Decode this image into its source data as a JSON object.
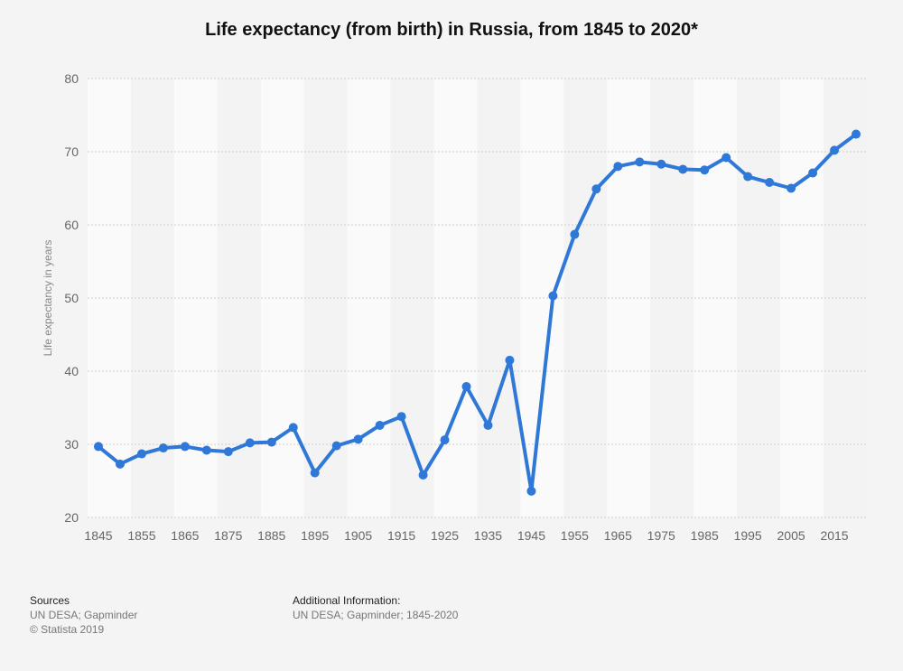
{
  "chart_data": {
    "type": "line",
    "title": "Life expectancy (from birth) in Russia, from 1845 to 2020*",
    "xlabel": "",
    "ylabel": "Life expectancy in years",
    "ylim": [
      20,
      80
    ],
    "yticks": [
      "20",
      "30",
      "40",
      "50",
      "60",
      "70",
      "80"
    ],
    "xticks": [
      "1845",
      "1855",
      "1865",
      "1875",
      "1885",
      "1895",
      "1905",
      "1915",
      "1925",
      "1935",
      "1945",
      "1955",
      "1965",
      "1975",
      "1985",
      "1995",
      "2005",
      "2015"
    ],
    "grid": true,
    "series": [
      {
        "color": "#2f78d8",
        "x": [
          1845,
          1850,
          1855,
          1860,
          1865,
          1870,
          1875,
          1880,
          1885,
          1890,
          1895,
          1900,
          1905,
          1910,
          1915,
          1920,
          1925,
          1930,
          1935,
          1940,
          1945,
          1950,
          1955,
          1960,
          1965,
          1970,
          1975,
          1980,
          1985,
          1990,
          1995,
          2000,
          2005,
          2010,
          2015,
          2020
        ],
        "values": [
          29.7,
          27.3,
          28.7,
          29.5,
          29.7,
          29.2,
          29.0,
          30.2,
          30.3,
          32.3,
          26.1,
          29.8,
          30.7,
          32.6,
          33.8,
          25.8,
          30.6,
          37.9,
          32.6,
          41.5,
          23.6,
          50.3,
          58.7,
          64.9,
          68.0,
          68.6,
          68.3,
          67.6,
          67.5,
          69.2,
          66.6,
          65.8,
          65.0,
          67.1,
          70.2,
          72.4
        ]
      }
    ]
  },
  "footer": {
    "sources_title": "Sources",
    "sources_line1": "UN DESA; Gapminder",
    "sources_line2": "© Statista 2019",
    "info_title": "Additional Information:",
    "info_line1": "UN DESA; Gapminder; 1845-2020"
  }
}
